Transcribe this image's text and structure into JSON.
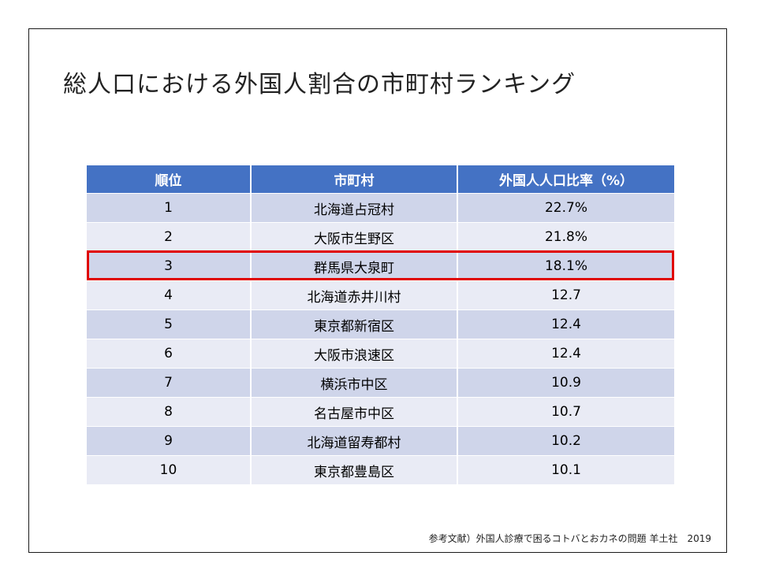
{
  "slide": {
    "title": "総人口における外国人割合の市町村ランキング",
    "citation": "参考文献）外国人診療で困るコトバとおカネの問題 羊土社　2019"
  },
  "table": {
    "headers": [
      "順位",
      "市町村",
      "外国人人口比率（%）"
    ],
    "rows": [
      {
        "rank": "1",
        "city": "北海道占冠村",
        "rate": "22.7%"
      },
      {
        "rank": "2",
        "city": "大阪市生野区",
        "rate": "21.8%"
      },
      {
        "rank": "3",
        "city": "群馬県大泉町",
        "rate": "18.1%"
      },
      {
        "rank": "4",
        "city": "北海道赤井川村",
        "rate": "12.7"
      },
      {
        "rank": "5",
        "city": "東京都新宿区",
        "rate": "12.4"
      },
      {
        "rank": "6",
        "city": "大阪市浪速区",
        "rate": "12.4"
      },
      {
        "rank": "7",
        "city": "横浜市中区",
        "rate": "10.9"
      },
      {
        "rank": "8",
        "city": "名古屋市中区",
        "rate": "10.7"
      },
      {
        "rank": "9",
        "city": "北海道留寿都村",
        "rate": "10.2"
      },
      {
        "rank": "10",
        "city": "東京都豊島区",
        "rate": "10.1"
      }
    ],
    "highlighted_rank": "3",
    "colors": {
      "header": "#4472c4",
      "row_dark": "#cfd5ea",
      "row_light": "#e9ebf5",
      "highlight": "#e00000"
    }
  }
}
